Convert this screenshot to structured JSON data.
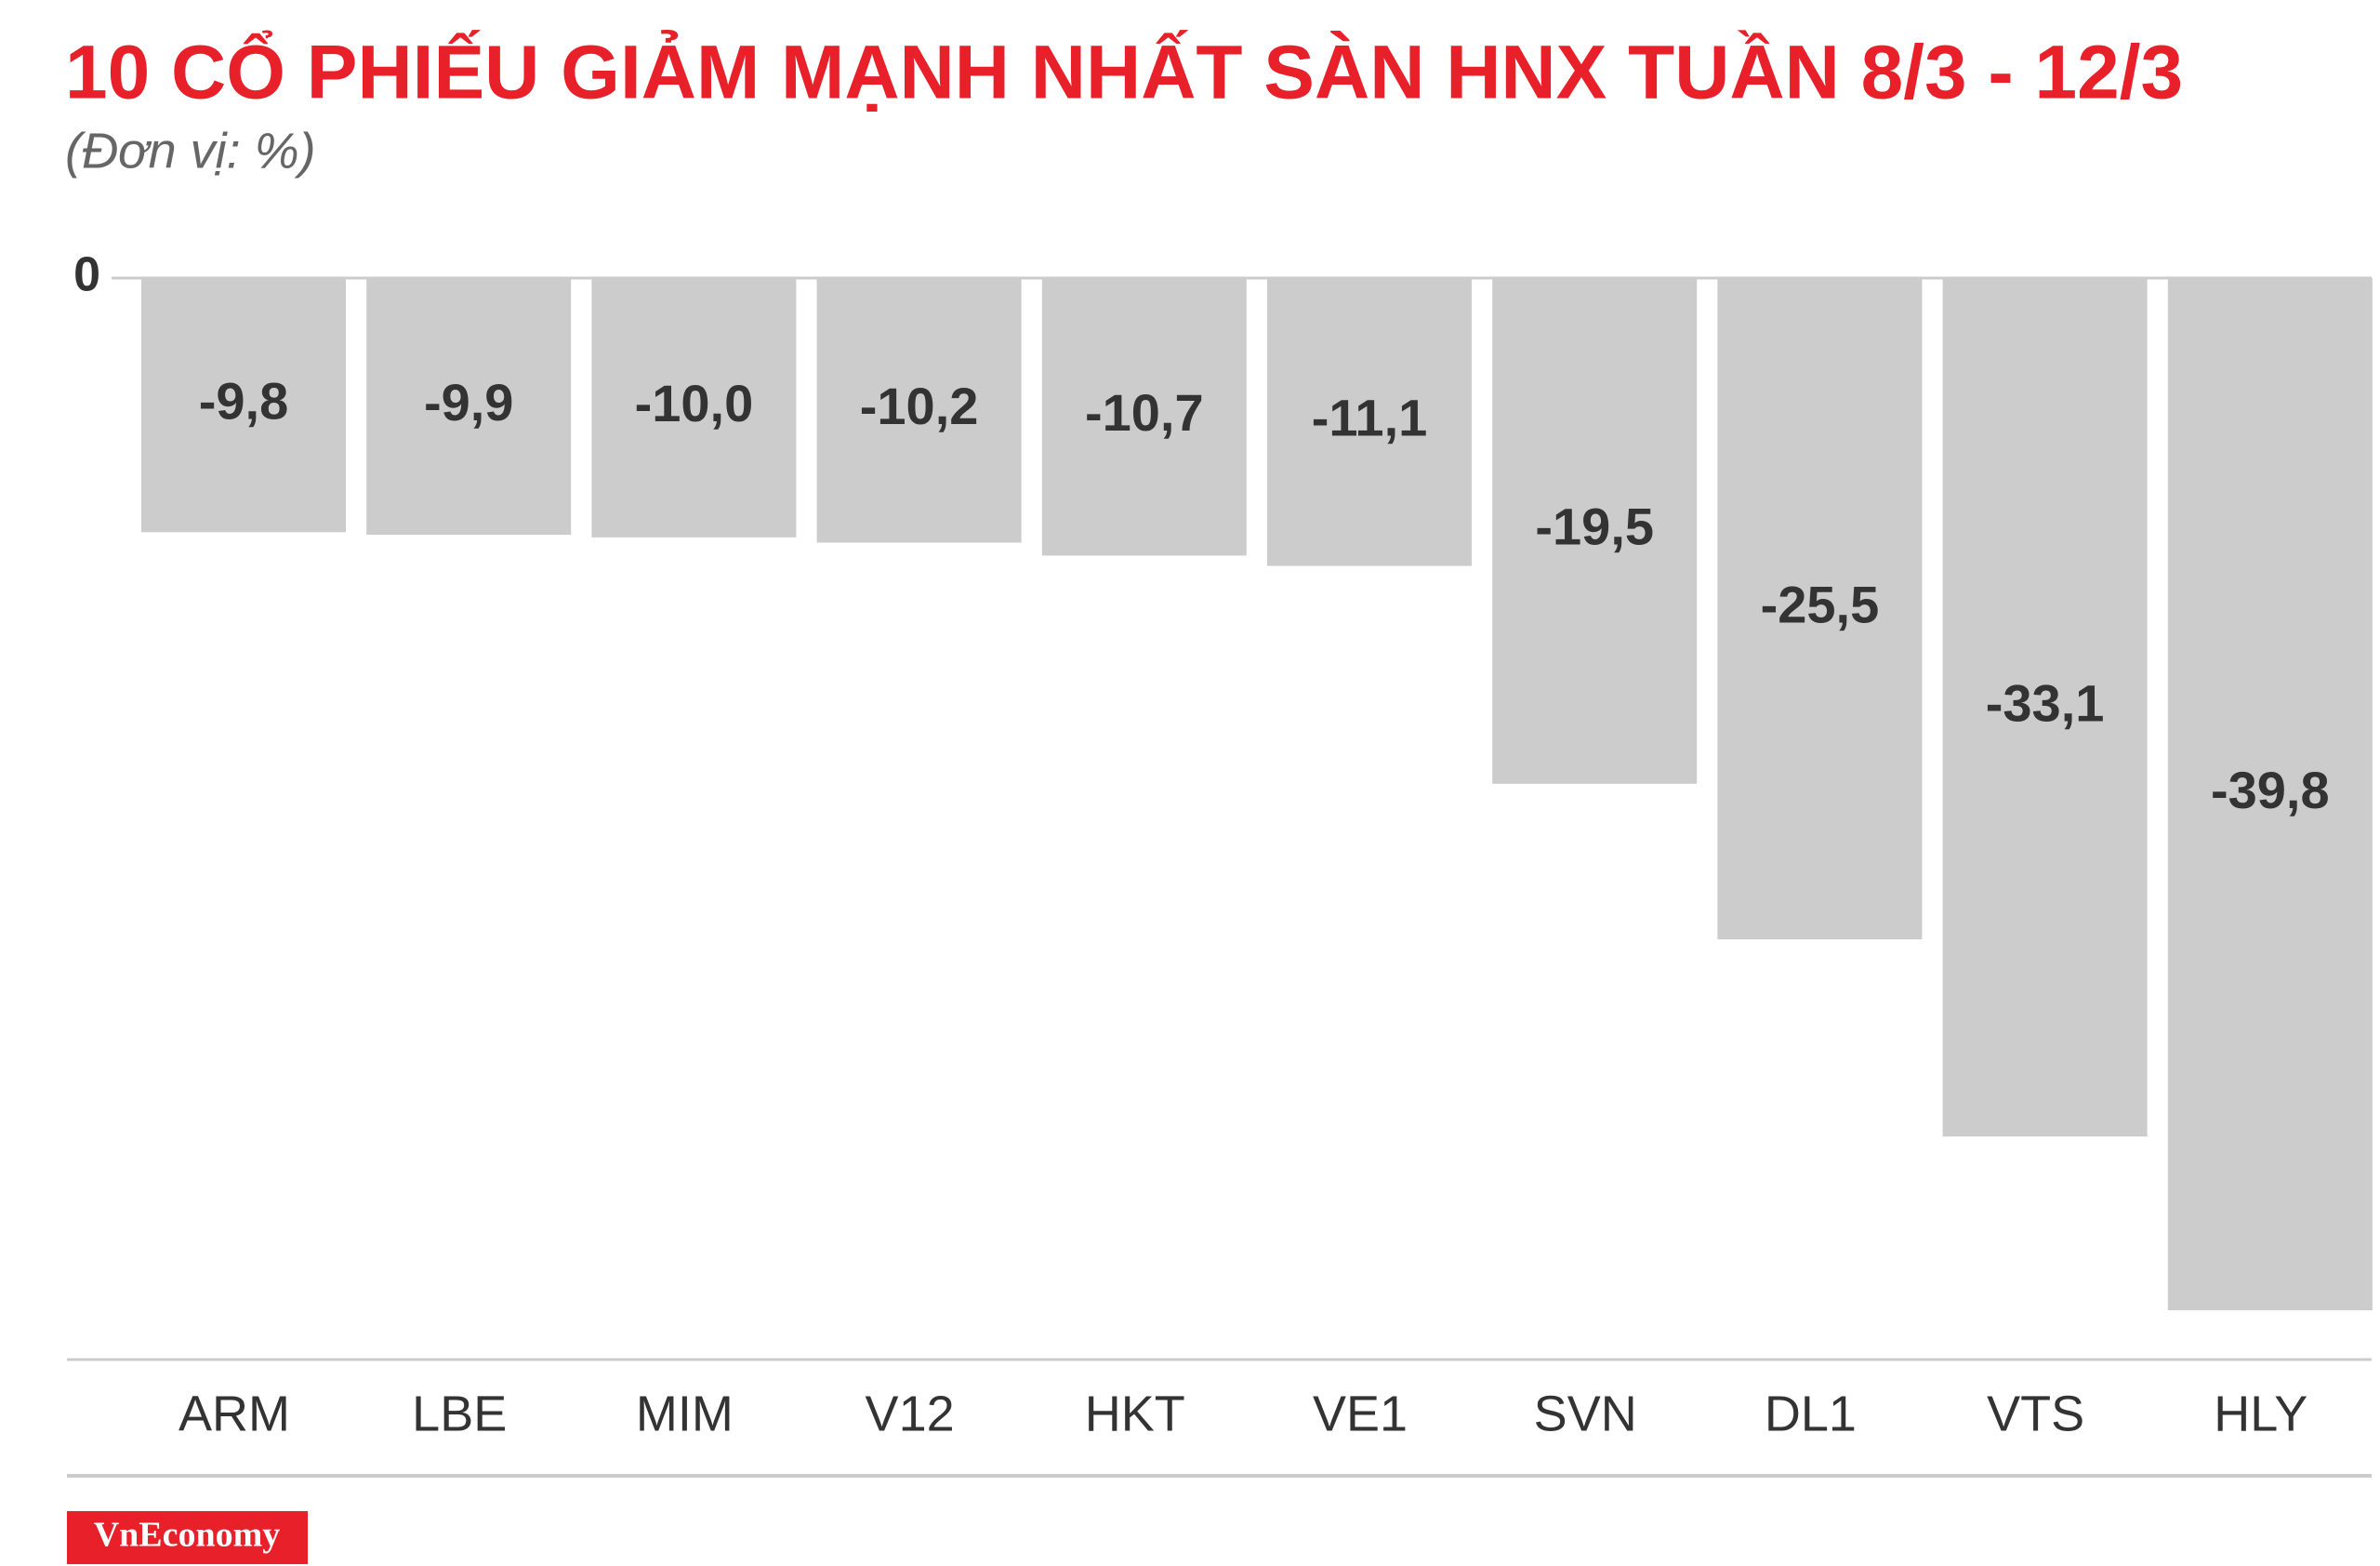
{
  "chart_data": {
    "type": "bar",
    "title": "10 CỔ PHIẾU GIẢM MẠNH NHẤT SÀN HNX TUẦN 8/3 - 12/3",
    "subtitle": "(Đơn vị: %)",
    "categories": [
      "ARM",
      "LBE",
      "MIM",
      "V12",
      "HKT",
      "VE1",
      "SVN",
      "DL1",
      "VTS",
      "HLY"
    ],
    "values": [
      -9.8,
      -9.9,
      -10.0,
      -10.2,
      -10.7,
      -11.1,
      -19.5,
      -25.5,
      -33.1,
      -39.8
    ],
    "value_labels": [
      "-9,8",
      "-9,9",
      "-10,0",
      "-10,2",
      "-10,7",
      "-11,1",
      "-19,5",
      "-25,5",
      "-33,1",
      "-39,8"
    ],
    "color": "#cccccc",
    "ylim": [
      -41.7,
      0
    ],
    "yticks": [
      0
    ],
    "source": "VnEconomy"
  }
}
